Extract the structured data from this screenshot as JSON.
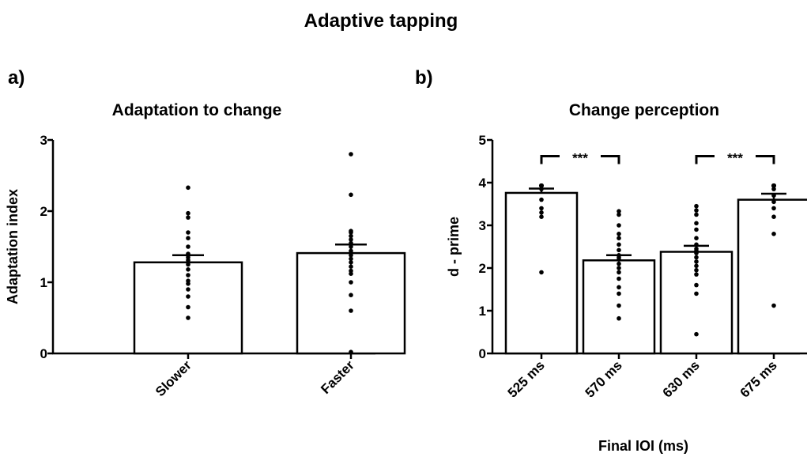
{
  "figure": {
    "title": "Adaptive tapping"
  },
  "chart_data": [
    {
      "panel_label": "a)",
      "type": "bar",
      "title": "Adaptation to change",
      "xlabel": "",
      "ylabel": "Adaptation index",
      "ylim": [
        0,
        3
      ],
      "yticks": [
        "0",
        "1",
        "2",
        "3"
      ],
      "categories": [
        "Slower",
        "Faster"
      ],
      "values": [
        1.28,
        1.41
      ],
      "sem": [
        0.1,
        0.12
      ],
      "points": [
        [
          2.33,
          1.97,
          1.91,
          1.7,
          1.62,
          1.5,
          1.4,
          1.35,
          1.31,
          1.28,
          1.25,
          1.18,
          1.1,
          1.02,
          0.98,
          0.9,
          0.8,
          0.65,
          0.5
        ],
        [
          2.8,
          2.23,
          1.72,
          1.7,
          1.65,
          1.6,
          1.55,
          1.5,
          1.44,
          1.38,
          1.33,
          1.28,
          1.22,
          1.16,
          1.12,
          1.0,
          0.82,
          0.6,
          0.02
        ]
      ],
      "grid": false,
      "legend": "none"
    },
    {
      "panel_label": "b)",
      "type": "bar",
      "title": "Change perception",
      "xlabel": "Final IOI (ms)",
      "ylabel": "d - prime",
      "ylim": [
        0,
        5
      ],
      "yticks": [
        "0",
        "1",
        "2",
        "3",
        "4",
        "5"
      ],
      "categories": [
        "525 ms",
        "570 ms",
        "630 ms",
        "675 ms"
      ],
      "values": [
        3.76,
        2.18,
        2.38,
        3.6
      ],
      "sem": [
        0.1,
        0.12,
        0.14,
        0.14
      ],
      "points": [
        [
          3.93,
          3.93,
          3.93,
          3.93,
          3.93,
          3.93,
          3.93,
          3.93,
          3.93,
          3.93,
          3.93,
          3.93,
          3.85,
          3.6,
          3.4,
          3.3,
          3.2,
          1.9
        ],
        [
          3.33,
          3.25,
          3.0,
          2.8,
          2.7,
          2.55,
          2.42,
          2.3,
          2.25,
          2.2,
          2.1,
          2.0,
          1.9,
          1.75,
          1.55,
          1.4,
          1.12,
          0.82
        ],
        [
          3.45,
          3.35,
          3.25,
          3.05,
          2.9,
          2.7,
          2.55,
          2.45,
          2.4,
          2.35,
          2.25,
          2.15,
          2.05,
          1.95,
          1.85,
          1.6,
          1.4,
          0.45
        ],
        [
          3.93,
          3.93,
          3.93,
          3.93,
          3.93,
          3.93,
          3.93,
          3.93,
          3.93,
          3.93,
          3.93,
          3.85,
          3.7,
          3.55,
          3.4,
          3.2,
          2.8,
          1.12
        ]
      ],
      "significance": [
        {
          "label": "***",
          "from": 0,
          "to": 1,
          "y": 4.62
        },
        {
          "label": "***",
          "from": 2,
          "to": 3,
          "y": 4.62
        }
      ],
      "grid": false,
      "legend": "none"
    }
  ]
}
